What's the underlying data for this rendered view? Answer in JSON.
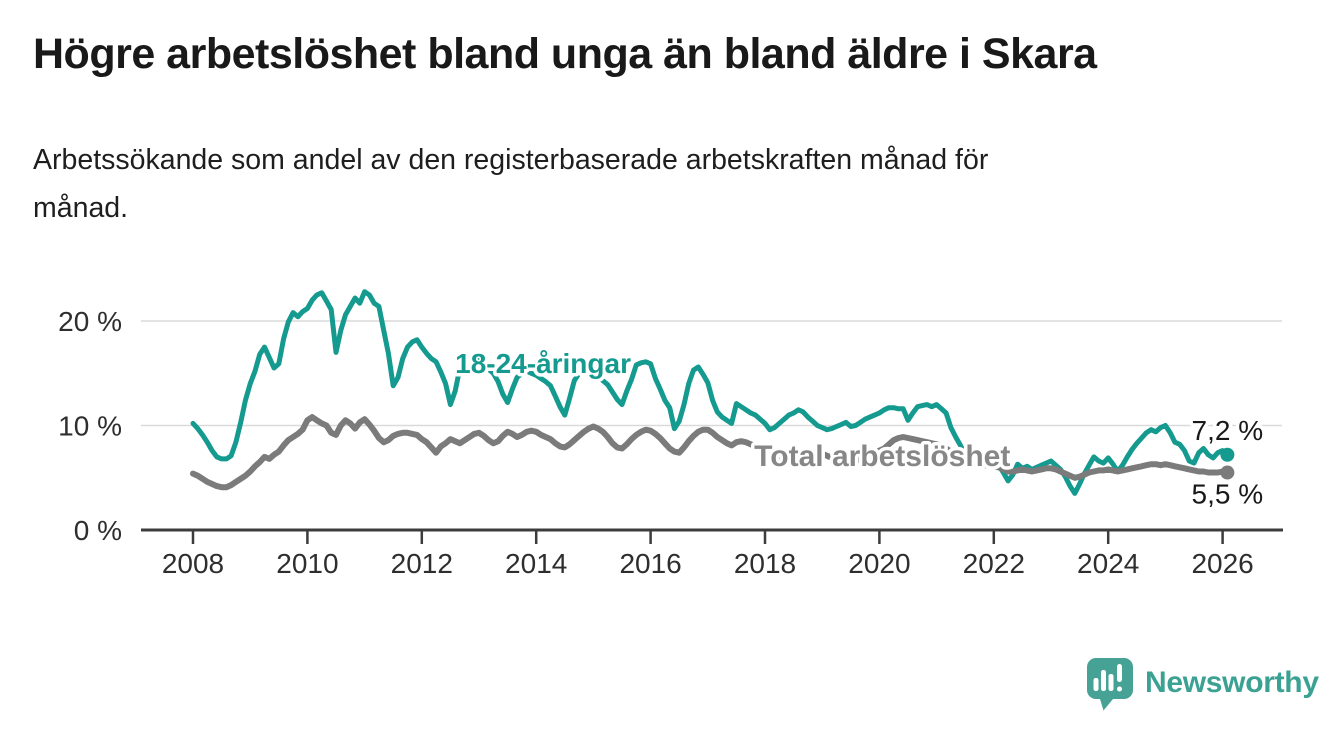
{
  "header": {
    "title": "Högre arbetslöshet bland unga än bland äldre i Skara",
    "subtitle_lines": {
      "0": "Arbetssökande som andel av den registerbaserade arbetskraften månad för",
      "1": "månad."
    }
  },
  "footer": {
    "brand": "Newsworthy",
    "logo_icon": "speech-bubble-bar-chart-icon"
  },
  "colors": {
    "young_line": "#149a8f",
    "total_line": "#7b7b7b",
    "total_label": "#878787",
    "axis": "#3c3c3c",
    "grid": "#dadada",
    "text": "#191919",
    "tick_text": "#2e2e2e",
    "logo": "#3ba293",
    "background": "#ffffff"
  },
  "chart_data": {
    "type": "line",
    "title": "Högre arbetslöshet bland unga än bland äldre i Skara",
    "subtitle": "Arbetssökande som andel av den registerbaserade arbetskraften månad för månad.",
    "xlabel": "",
    "ylabel": "",
    "x_start_year": 2008,
    "x_step": "monthly",
    "x_end_year": 2026.083,
    "ylim": [
      0,
      24
    ],
    "grid": true,
    "legend_position": "inline-labels",
    "yticks": [
      {
        "value": 0,
        "label": "0 %"
      },
      {
        "value": 10,
        "label": "10 %"
      },
      {
        "value": 20,
        "label": "20 %"
      }
    ],
    "xticks": [
      {
        "value": 2008,
        "label": "2008"
      },
      {
        "value": 2010,
        "label": "2010"
      },
      {
        "value": 2012,
        "label": "2012"
      },
      {
        "value": 2014,
        "label": "2014"
      },
      {
        "value": 2016,
        "label": "2016"
      },
      {
        "value": 2018,
        "label": "2018"
      },
      {
        "value": 2020,
        "label": "2020"
      },
      {
        "value": 2022,
        "label": "2022"
      },
      {
        "value": 2024,
        "label": "2024"
      },
      {
        "value": 2026,
        "label": "2026"
      }
    ],
    "series": [
      {
        "name": "18-24-åringar",
        "color": "#149a8f",
        "stroke_width": 5,
        "label": {
          "text": "18-24-åringar",
          "x": 2014.12,
          "y": 16.0,
          "font_size": 28
        },
        "end_label": "7,2 %",
        "end_value": 7.2,
        "values": [
          10.2,
          9.7,
          9.1,
          8.4,
          7.6,
          7.0,
          6.8,
          6.8,
          7.1,
          8.4,
          10.3,
          12.4,
          14.0,
          15.2,
          16.8,
          17.5,
          16.5,
          15.5,
          15.9,
          18.3,
          19.9,
          20.8,
          20.4,
          20.9,
          21.2,
          22.0,
          22.5,
          22.7,
          21.9,
          21.1,
          17.0,
          19.1,
          20.6,
          21.4,
          22.2,
          21.7,
          22.8,
          22.5,
          21.7,
          21.4,
          19.1,
          16.9,
          13.8,
          14.6,
          16.4,
          17.5,
          18.0,
          18.2,
          17.5,
          16.9,
          16.4,
          16.1,
          15.1,
          14.0,
          12.0,
          13.3,
          15.5,
          16.2,
          16.4,
          16.5,
          16.2,
          15.8,
          15.4,
          15.0,
          14.2,
          13.0,
          12.2,
          13.5,
          14.6,
          15.0,
          15.2,
          15.0,
          14.8,
          14.5,
          14.2,
          13.8,
          12.8,
          11.8,
          11.0,
          12.6,
          14.3,
          15.0,
          15.2,
          15.0,
          14.9,
          14.6,
          14.3,
          13.9,
          13.2,
          12.5,
          12.0,
          13.3,
          14.4,
          15.8,
          16.0,
          16.1,
          15.9,
          14.5,
          13.5,
          12.4,
          11.7,
          9.7,
          10.4,
          12.0,
          14.0,
          15.3,
          15.6,
          14.9,
          14.1,
          12.4,
          11.3,
          10.8,
          10.5,
          10.2,
          12.1,
          11.8,
          11.5,
          11.2,
          11.0,
          10.6,
          10.2,
          9.6,
          9.8,
          10.2,
          10.6,
          11.0,
          11.2,
          11.5,
          11.3,
          10.8,
          10.4,
          10.0,
          9.8,
          9.6,
          9.7,
          9.9,
          10.1,
          10.3,
          9.9,
          10.0,
          10.3,
          10.6,
          10.8,
          11.0,
          11.2,
          11.5,
          11.7,
          11.7,
          11.6,
          11.6,
          10.5,
          11.2,
          11.8,
          11.9,
          12.0,
          11.8,
          12.0,
          11.6,
          11.2,
          9.8,
          8.9,
          8.1,
          7.2,
          6.9,
          6.6,
          6.5,
          6.7,
          6.9,
          6.6,
          6.2,
          5.5,
          4.7,
          5.3,
          6.3,
          5.9,
          6.1,
          5.8,
          6.0,
          6.2,
          6.4,
          6.6,
          6.2,
          5.8,
          5.1,
          4.2,
          3.5,
          4.4,
          5.4,
          6.2,
          7.0,
          6.6,
          6.4,
          6.9,
          6.3,
          5.6,
          6.2,
          7.0,
          7.7,
          8.3,
          8.8,
          9.3,
          9.6,
          9.4,
          9.8,
          10.0,
          9.3,
          8.4,
          8.2,
          7.6,
          6.6,
          6.4,
          7.4,
          7.8,
          7.2,
          6.9,
          7.4,
          7.6,
          7.2
        ]
      },
      {
        "name": "Total arbetslöshet",
        "color": "#7b7b7b",
        "label_color": "#878787",
        "stroke_width": 6,
        "label": {
          "text": "Total arbetslöshet",
          "x": 2020.05,
          "y": 7.1,
          "font_size": 30
        },
        "end_label": "5,5 %",
        "end_value": 5.5,
        "values": [
          5.4,
          5.2,
          4.9,
          4.6,
          4.4,
          4.2,
          4.1,
          4.1,
          4.3,
          4.6,
          4.9,
          5.2,
          5.6,
          6.1,
          6.5,
          7.0,
          6.8,
          7.2,
          7.5,
          8.1,
          8.6,
          8.9,
          9.2,
          9.6,
          10.5,
          10.8,
          10.5,
          10.2,
          10.0,
          9.3,
          9.1,
          10.0,
          10.5,
          10.2,
          9.7,
          10.3,
          10.6,
          10.1,
          9.5,
          8.8,
          8.4,
          8.6,
          9.0,
          9.2,
          9.3,
          9.3,
          9.2,
          9.1,
          8.7,
          8.4,
          7.9,
          7.4,
          8.0,
          8.3,
          8.7,
          8.5,
          8.3,
          8.6,
          8.9,
          9.2,
          9.3,
          9.0,
          8.6,
          8.3,
          8.5,
          9.0,
          9.4,
          9.2,
          8.9,
          9.1,
          9.4,
          9.5,
          9.4,
          9.1,
          8.9,
          8.7,
          8.3,
          8.0,
          7.9,
          8.2,
          8.6,
          9.0,
          9.4,
          9.7,
          9.9,
          9.7,
          9.4,
          8.9,
          8.3,
          7.9,
          7.8,
          8.2,
          8.7,
          9.1,
          9.4,
          9.6,
          9.5,
          9.2,
          8.8,
          8.3,
          7.8,
          7.5,
          7.4,
          7.9,
          8.5,
          9.0,
          9.4,
          9.6,
          9.6,
          9.3,
          8.9,
          8.6,
          8.3,
          8.1,
          8.4,
          8.5,
          8.4,
          8.2,
          8.0,
          7.9,
          7.8,
          7.5,
          7.2,
          6.9,
          6.6,
          6.5,
          6.5,
          6.8,
          7.0,
          7.2,
          7.3,
          7.4,
          7.3,
          7.1,
          6.9,
          6.7,
          6.4,
          6.2,
          6.3,
          6.6,
          6.8,
          7.0,
          7.2,
          7.4,
          7.6,
          7.8,
          8.2,
          8.6,
          8.8,
          8.9,
          8.8,
          8.7,
          8.6,
          8.5,
          8.4,
          8.3,
          8.2,
          8.0,
          7.8,
          7.5,
          7.2,
          6.9,
          6.7,
          6.5,
          6.4,
          6.3,
          6.2,
          6.2,
          6.1,
          6.0,
          5.8,
          5.6,
          5.6,
          5.7,
          5.8,
          5.7,
          5.6,
          5.7,
          5.8,
          5.9,
          5.9,
          5.8,
          5.6,
          5.4,
          5.2,
          5.0,
          5.1,
          5.3,
          5.5,
          5.6,
          5.7,
          5.7,
          5.8,
          5.7,
          5.6,
          5.7,
          5.8,
          5.9,
          6.0,
          6.1,
          6.2,
          6.3,
          6.3,
          6.2,
          6.3,
          6.2,
          6.1,
          6.0,
          5.9,
          5.8,
          5.7,
          5.6,
          5.6,
          5.5,
          5.5,
          5.5,
          5.6,
          5.5
        ]
      }
    ]
  }
}
